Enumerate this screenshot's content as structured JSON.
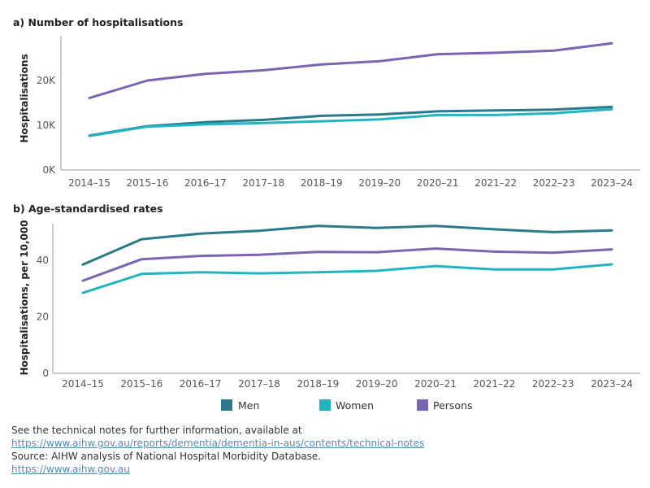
{
  "colors": {
    "men": "#2a7a8c",
    "women": "#22b5c1",
    "persons": "#7a65b3"
  },
  "chart_data": [
    {
      "type": "line",
      "title": "a) Number of hospitalisations",
      "ylabel": "Hospitalisations",
      "xlabel": "",
      "categories": [
        "2014–15",
        "2015–16",
        "2016–17",
        "2017–18",
        "2018–19",
        "2019–20",
        "2020–21",
        "2021–22",
        "2022–23",
        "2023–24"
      ],
      "yticks": [
        0,
        10000,
        20000
      ],
      "ytick_labels": [
        "0K",
        "10K",
        "20K"
      ],
      "ylim": [
        0,
        30000
      ],
      "series": [
        {
          "name": "Men",
          "values": [
            7700,
            9800,
            10700,
            11200,
            12100,
            12400,
            13100,
            13300,
            13500,
            14100
          ]
        },
        {
          "name": "Women",
          "values": [
            7600,
            9700,
            10200,
            10500,
            10900,
            11300,
            12300,
            12300,
            12700,
            13600
          ]
        },
        {
          "name": "Persons",
          "values": [
            16100,
            20000,
            21500,
            22300,
            23600,
            24300,
            25900,
            26200,
            26700,
            28300
          ]
        }
      ]
    },
    {
      "type": "line",
      "title": "b)  Age-standardised rates",
      "ylabel": "Hospitalisations, per 10,000",
      "xlabel": "",
      "categories": [
        "2014–15",
        "2015–16",
        "2016–17",
        "2017–18",
        "2018–19",
        "2019–20",
        "2020–21",
        "2021–22",
        "2022–23",
        "2023–24"
      ],
      "yticks": [
        0,
        20,
        40
      ],
      "ytick_labels": [
        "0",
        "20",
        "40"
      ],
      "ylim": [
        0,
        53
      ],
      "series": [
        {
          "name": "Men",
          "values": [
            38.5,
            47.5,
            49.5,
            50.5,
            52.2,
            51.5,
            52.2,
            51.0,
            50.0,
            50.6
          ]
        },
        {
          "name": "Women",
          "values": [
            28.5,
            35.2,
            35.8,
            35.4,
            35.8,
            36.3,
            38.0,
            36.8,
            36.8,
            38.6
          ]
        },
        {
          "name": "Persons",
          "values": [
            32.8,
            40.4,
            41.6,
            42.0,
            43.0,
            42.9,
            44.2,
            43.1,
            42.7,
            43.9
          ]
        }
      ]
    }
  ],
  "legend": [
    {
      "label": "Men",
      "color_key": "men"
    },
    {
      "label": "Women",
      "color_key": "women"
    },
    {
      "label": "Persons",
      "color_key": "persons"
    }
  ],
  "footer": {
    "note": "See the technical notes for further information, available at",
    "note_link": "https://www.aihw.gov.au/reports/dementia/dementia-in-aus/contents/technical-notes",
    "source": "Source:  AIHW analysis of National Hospital Morbidity Database.",
    "site_link": "https://www.aihw.gov.au"
  }
}
